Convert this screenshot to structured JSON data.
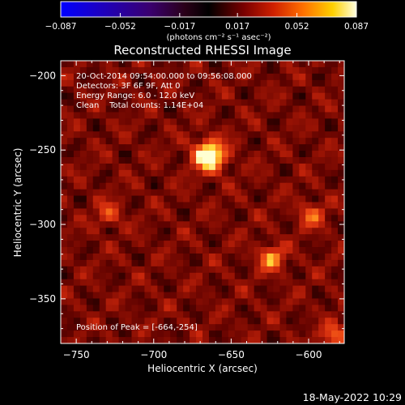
{
  "chart_data": {
    "type": "heatmap",
    "title": "Reconstructed RHESSI Image",
    "xlabel": "Heliocentric X (arcsec)",
    "ylabel": "Heliocentric Y (arcsec)",
    "xlim": [
      -760,
      -577
    ],
    "ylim": [
      -380,
      -190
    ],
    "x_ticks": [
      -750,
      -700,
      -650,
      -600
    ],
    "y_ticks": [
      -200,
      -250,
      -300,
      -350
    ],
    "x_tick_labels": [
      "−750",
      "−700",
      "−650",
      "−600"
    ],
    "y_tick_labels": [
      "−200",
      "−250",
      "−300",
      "−350"
    ],
    "colorbar": {
      "min": -0.087,
      "max": 0.087,
      "ticks": [
        -0.087,
        -0.052,
        -0.017,
        0.017,
        0.052,
        0.087
      ],
      "tick_labels": [
        "−0.087",
        "−0.052",
        "−0.017",
        "0.017",
        "0.052",
        "0.087"
      ],
      "units_label": "(photons cm⁻² s⁻¹ asec⁻²)"
    },
    "annotations": [
      "20-Oct-2014 09:54:00.000 to 09:56:08.000",
      "Detectors: 3F 6F 9F, Att 0",
      "Energy Range: 6.0 - 12.0 keV",
      "Clean    Total counts: 1.14E+04"
    ],
    "peak_label": "Position of Peak = [-664,-254]",
    "sources": [
      {
        "x": -664,
        "y": -254,
        "value": 0.087
      },
      {
        "x": -624,
        "y": -323,
        "value": 0.05
      },
      {
        "x": -598,
        "y": -294,
        "value": 0.036
      },
      {
        "x": -729,
        "y": -293,
        "value": 0.03
      },
      {
        "x": -583,
        "y": -375,
        "value": 0.04
      }
    ]
  },
  "timestamp": "18-May-2022 10:29",
  "colors": {
    "background": "#000000",
    "text": "#ffffff"
  }
}
